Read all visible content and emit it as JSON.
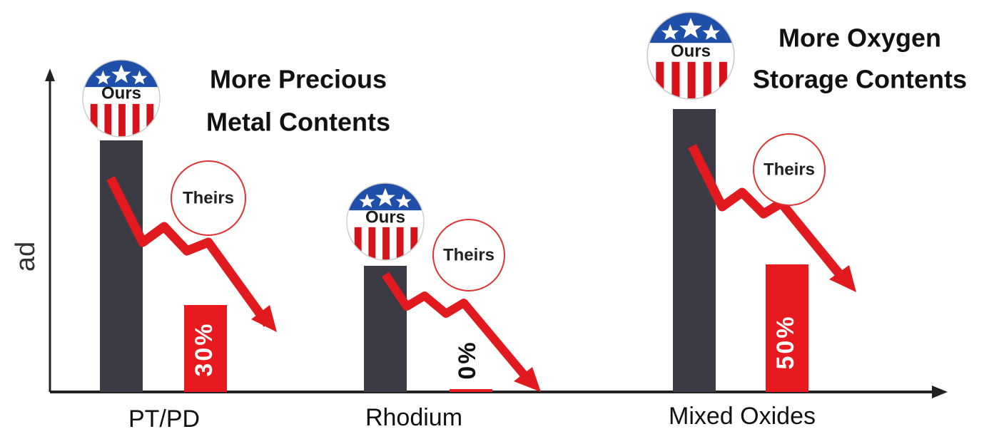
{
  "axis_label": "ad",
  "groups": [
    {
      "label": "PT/PD",
      "note": [
        "More Precious",
        "Metal Contents"
      ],
      "ours": "Ours",
      "theirs": "Theirs",
      "reduction": "30%"
    },
    {
      "label": "Rhodium",
      "ours": "Ours",
      "theirs": "Theirs",
      "reduction": "0%"
    },
    {
      "label": "Mixed Oxides",
      "note": [
        "More Oxygen",
        "Storage Contents"
      ],
      "ours": "Ours",
      "theirs": "Theirs",
      "reduction": "50%"
    }
  ]
}
